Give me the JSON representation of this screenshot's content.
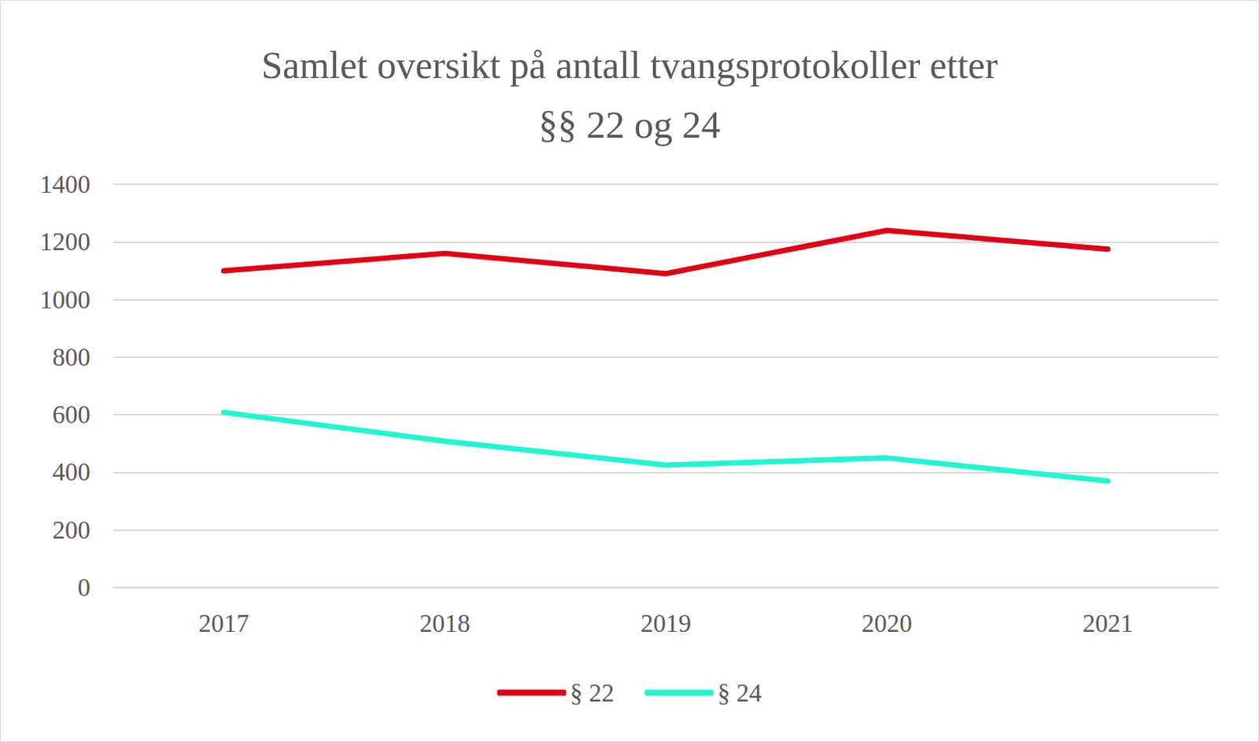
{
  "chart_data": {
    "type": "line",
    "title": "Samlet oversikt på antall tvangsprotokoller etter\n§§ 22 og 24",
    "categories": [
      "2017",
      "2018",
      "2019",
      "2020",
      "2021"
    ],
    "series": [
      {
        "name": "§ 22",
        "color": "#e00016",
        "values": [
          1100,
          1160,
          1090,
          1240,
          1175
        ]
      },
      {
        "name": "§ 24",
        "color": "#22f5d2",
        "values": [
          608,
          508,
          425,
          450,
          370
        ]
      }
    ],
    "ylim": [
      0,
      1400
    ],
    "yticks": [
      0,
      200,
      400,
      600,
      800,
      1000,
      1200,
      1400
    ],
    "grid": true,
    "legend": "bottom"
  }
}
